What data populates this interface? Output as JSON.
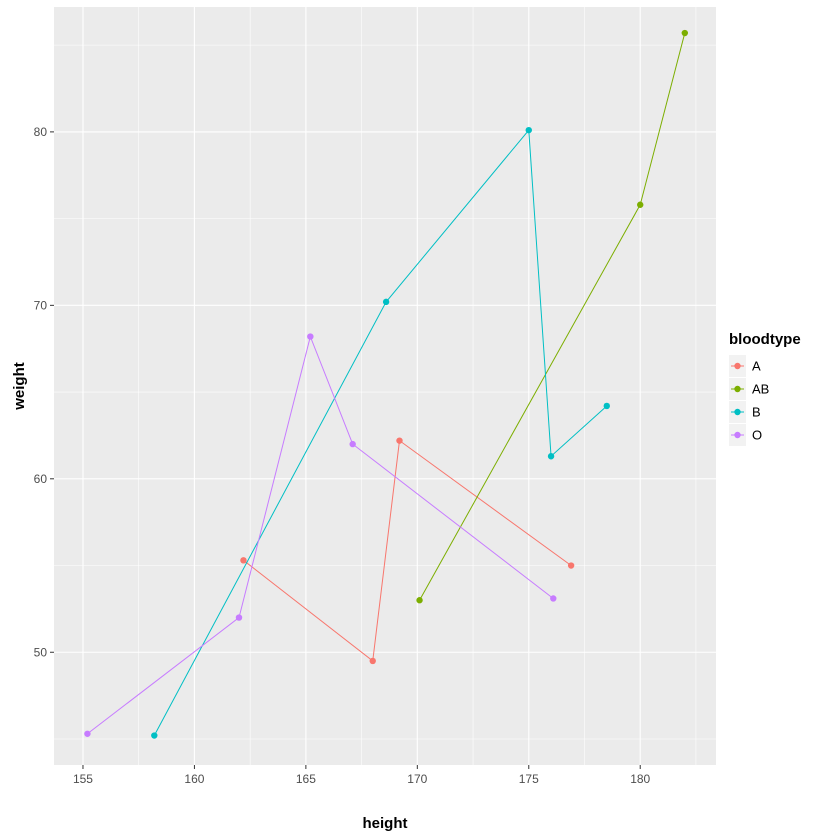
{
  "chart_data": {
    "type": "line",
    "xlabel": "height",
    "ylabel": "weight",
    "xlim": [
      153.7,
      183.4
    ],
    "ylim": [
      43.5,
      87.2
    ],
    "x_ticks": [
      155,
      160,
      165,
      170,
      175,
      180
    ],
    "y_ticks": [
      50,
      60,
      70,
      80
    ],
    "grid": true,
    "legend": {
      "title": "bloodtype",
      "position": "right"
    },
    "series": [
      {
        "name": "A",
        "color": "#F8766D",
        "points": [
          [
            162.2,
            55.3
          ],
          [
            168.0,
            49.5
          ],
          [
            169.2,
            62.2
          ],
          [
            176.9,
            55.0
          ]
        ]
      },
      {
        "name": "AB",
        "color": "#7CAE00",
        "points": [
          [
            170.1,
            53.0
          ],
          [
            180.0,
            75.8
          ],
          [
            182.0,
            85.7
          ]
        ]
      },
      {
        "name": "B",
        "color": "#00BFC4",
        "points": [
          [
            158.2,
            45.2
          ],
          [
            168.6,
            70.2
          ],
          [
            175.0,
            80.1
          ],
          [
            176.0,
            61.3
          ],
          [
            178.5,
            64.2
          ]
        ]
      },
      {
        "name": "O",
        "color": "#C77CFF",
        "points": [
          [
            155.2,
            45.3
          ],
          [
            162.0,
            52.0
          ],
          [
            165.2,
            68.2
          ],
          [
            167.1,
            62.0
          ],
          [
            176.1,
            53.1
          ]
        ]
      }
    ]
  },
  "colors": {
    "panel_background": "#EBEBEB",
    "grid_major": "#FFFFFF",
    "legend_key_background": "#F2F2F2"
  }
}
